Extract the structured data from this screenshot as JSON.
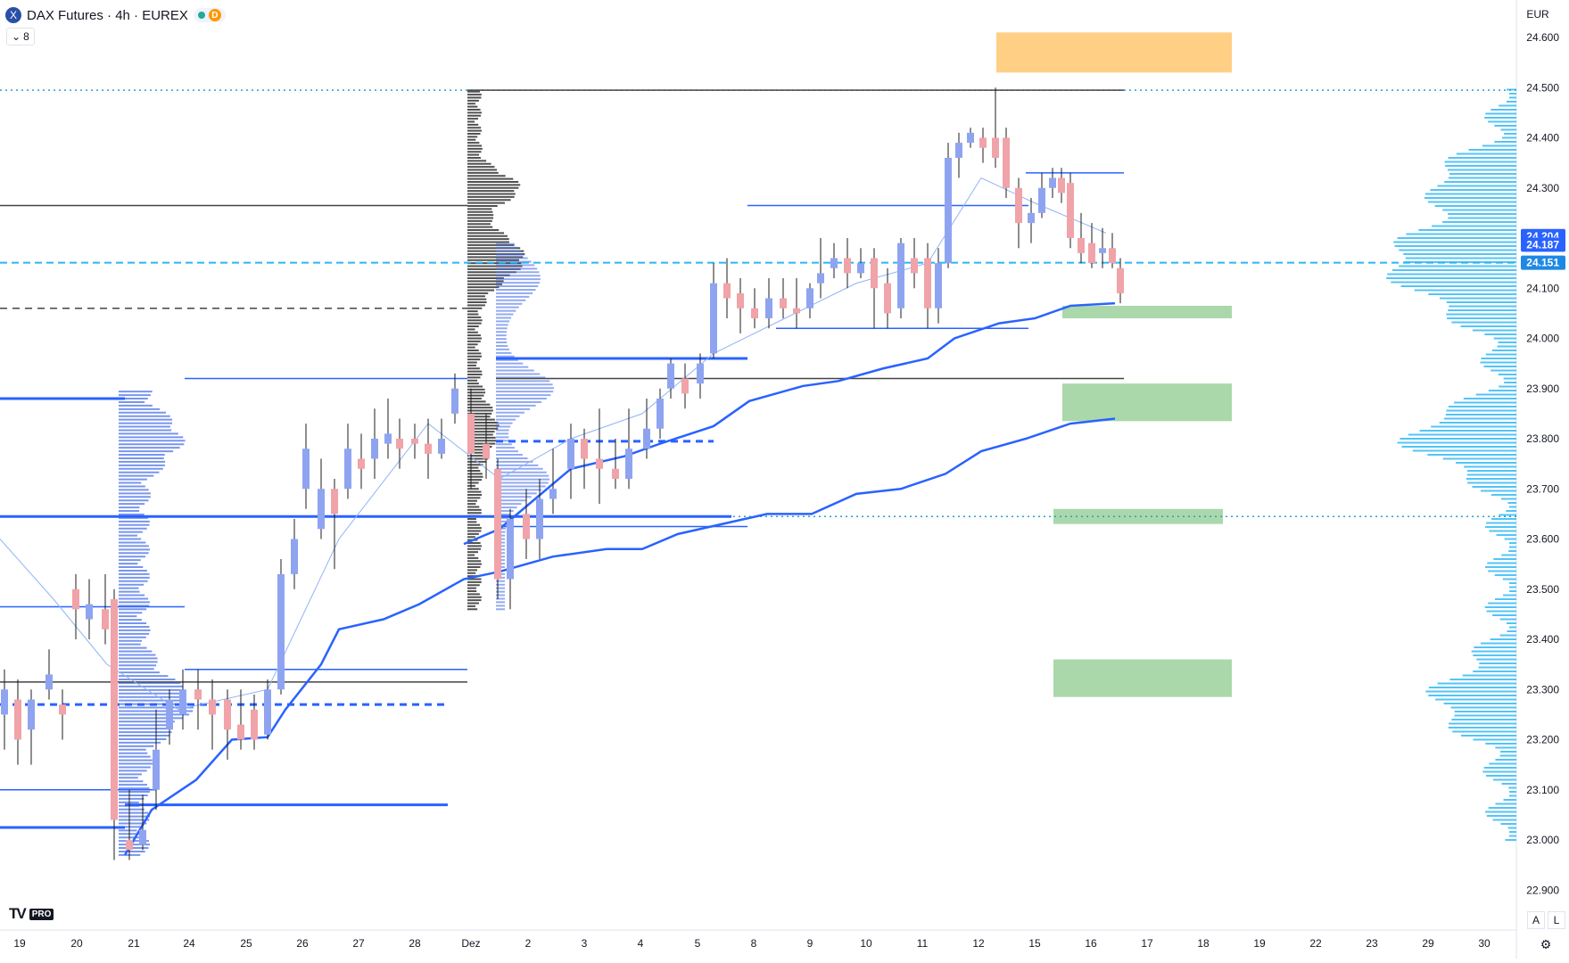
{
  "header": {
    "symbol_icon": "exchange-x-icon",
    "symbol_letter": "X",
    "title": "DAX Futures · 4h · EUREX",
    "status_dot_color": "#22ab94",
    "delay_badge": "D",
    "indicators_count": "8",
    "indicators_icon": "chevron-down-icon",
    "currency": "EUR"
  },
  "price_axis": {
    "ticks": [
      "24.600",
      "24.500",
      "24.400",
      "24.300",
      "24.200",
      "24.100",
      "24.000",
      "23.900",
      "23.800",
      "23.700",
      "23.600",
      "23.500",
      "23.400",
      "23.300",
      "23.200",
      "23.100",
      "23.000",
      "22.900"
    ],
    "labels": [
      {
        "text": "24.204",
        "color": "#2962ff"
      },
      {
        "text": "24.187",
        "color": "#2962ff"
      },
      {
        "text": "24.151",
        "color": "#1e88e5"
      }
    ]
  },
  "time_axis": {
    "ticks": [
      "19",
      "20",
      "21",
      "24",
      "25",
      "26",
      "27",
      "28",
      "Dez",
      "2",
      "3",
      "4",
      "5",
      "8",
      "9",
      "10",
      "11",
      "12",
      "15",
      "16",
      "17",
      "18",
      "19",
      "22",
      "23",
      "29",
      "30"
    ]
  },
  "branding": {
    "logo": "TV",
    "tier": "PRO"
  },
  "footer": {
    "auto_button": "A",
    "log_button": "L",
    "settings_icon": "gear-icon"
  },
  "colors": {
    "up_candle": "#8fa4f0",
    "down_candle": "#f0a3a8",
    "vwap_band": "#2962ff",
    "volume_profile_right": "#29b6f6",
    "volume_profile_blue": "#4a72e8",
    "volume_profile_dark": "#333333",
    "supply_zone": "#ffcc80",
    "demand_zone": "#a5d6a7",
    "current_price_line": "#29b6f6"
  },
  "chart_data": {
    "type": "candlestick",
    "title": "DAX Futures · 4h · EUREX",
    "ylim": [
      22880,
      24660
    ],
    "current_price": 24151,
    "markers": [
      24204,
      24187,
      24151
    ],
    "key_levels": [
      24495,
      23645,
      24060,
      24265,
      23920
    ],
    "zones": [
      {
        "kind": "supply",
        "low": 24530,
        "high": 24610
      },
      {
        "kind": "demand",
        "low": 24040,
        "high": 24065
      },
      {
        "kind": "demand",
        "low": 23835,
        "high": 23910
      },
      {
        "kind": "demand",
        "low": 23630,
        "high": 23660
      },
      {
        "kind": "demand",
        "low": 23285,
        "high": 23360
      }
    ]
  }
}
